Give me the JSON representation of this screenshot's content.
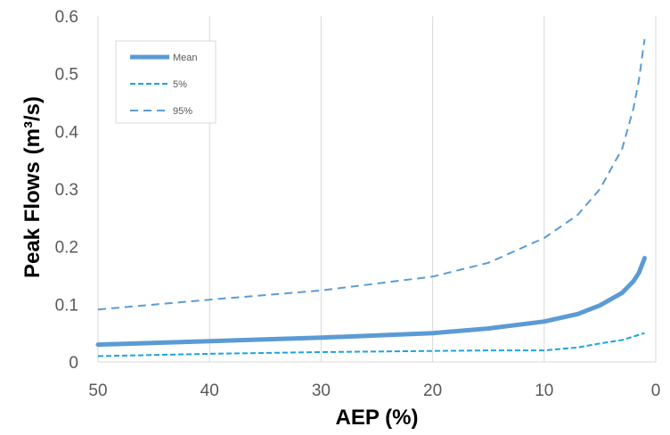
{
  "chart_data": {
    "type": "line",
    "xlabel": "AEP (%)",
    "ylabel_main": "Peak Flows",
    "ylabel_unit": "(m³/s)",
    "xlim": [
      50,
      0
    ],
    "ylim": [
      0,
      0.6
    ],
    "x_ticks": [
      50,
      40,
      30,
      20,
      10,
      0
    ],
    "y_ticks": [
      0,
      0.1,
      0.2,
      0.3,
      0.4,
      0.5,
      0.6
    ],
    "y_tick_labels": [
      "0",
      "0.1",
      "0.2",
      "0.3",
      "0.4",
      "0.5",
      "0.6"
    ],
    "grid": {
      "vertical": true,
      "horizontal": false
    },
    "legend_position": "top-left",
    "series": [
      {
        "name": "Mean",
        "color": "#5b9bd5",
        "style": "solid",
        "x": [
          50,
          40,
          30,
          20,
          15,
          10,
          7,
          5,
          3,
          2,
          1.5,
          1
        ],
        "y": [
          0.03,
          0.036,
          0.042,
          0.05,
          0.058,
          0.07,
          0.083,
          0.098,
          0.12,
          0.14,
          0.155,
          0.18
        ]
      },
      {
        "name": "5%",
        "color": "#1aa5e0",
        "style": "dense-dash",
        "x": [
          50,
          40,
          30,
          20,
          15,
          10,
          7,
          5,
          3,
          1
        ],
        "y": [
          0.01,
          0.014,
          0.017,
          0.019,
          0.02,
          0.02,
          0.025,
          0.032,
          0.038,
          0.05
        ]
      },
      {
        "name": "95%",
        "color": "#5b9bd5",
        "style": "dash",
        "x": [
          50,
          40,
          30,
          20,
          15,
          10,
          7,
          5,
          3,
          2,
          1.5,
          1
        ],
        "y": [
          0.091,
          0.108,
          0.124,
          0.148,
          0.172,
          0.215,
          0.255,
          0.3,
          0.37,
          0.44,
          0.49,
          0.56
        ]
      }
    ]
  }
}
